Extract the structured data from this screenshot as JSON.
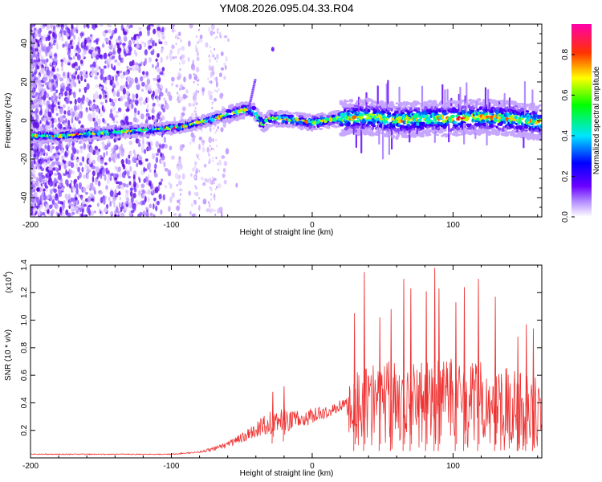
{
  "title": "YM08.2026.095.04.33.R04",
  "chart_data": [
    {
      "type": "heatmap",
      "name": "spectrogram",
      "xlabel": "Height of straight line (km)",
      "ylabel": "Frequency (Hz)",
      "xlim": [
        -200,
        163
      ],
      "ylim": [
        -50,
        50
      ],
      "xticks": [
        -200,
        -100,
        0,
        100
      ],
      "yticks": [
        -40,
        -20,
        0,
        20,
        40
      ],
      "ridge_x": [
        -200,
        -180,
        -160,
        -140,
        -120,
        -100,
        -90,
        -80,
        -70,
        -60,
        -50,
        -45,
        -40,
        -35,
        -30,
        -20,
        -10,
        0,
        10,
        20,
        40,
        60,
        80,
        100,
        120,
        140,
        163
      ],
      "ridge_freq": [
        -8,
        -8,
        -7,
        -6,
        -5,
        -4,
        -3,
        -1,
        1,
        3,
        5,
        6,
        4,
        -2,
        1,
        1,
        0,
        -1,
        0,
        1,
        2,
        0,
        1,
        1,
        2,
        1,
        -1
      ],
      "colorbar": {
        "label": "Normalized spectral amplitude",
        "range": [
          0,
          0.95
        ],
        "ticks": [
          "0.0",
          "0.2",
          "0.4",
          "0.6",
          "0.8"
        ],
        "colors": [
          "#ffffff",
          "#9b30ff",
          "#0000ff",
          "#00ffff",
          "#00ff00",
          "#ffff00",
          "#ff8c00",
          "#ff0000",
          "#ff00ff"
        ]
      }
    },
    {
      "type": "line",
      "name": "snr",
      "xlabel": "Height of straight line (km)",
      "ylabel": "SNR (10 * v/v)",
      "scale_label": "(x10",
      "scale_exp": "4",
      "scale_close": ")",
      "xlim": [
        -200,
        163
      ],
      "ylim": [
        0,
        1.4
      ],
      "xticks": [
        -200,
        -100,
        0,
        100
      ],
      "yticks": [
        "0.2",
        "0.4",
        "0.6",
        "0.8",
        "1.0",
        "1.2",
        "1.4"
      ],
      "color": "#ee3333",
      "envelope_x": [
        -200,
        -150,
        -100,
        -80,
        -70,
        -60,
        -50,
        -40,
        -30,
        -20,
        -10,
        0,
        10,
        20,
        25,
        27,
        30,
        40,
        50,
        60,
        70,
        80,
        90,
        100,
        110,
        120,
        130,
        140,
        150,
        163
      ],
      "envelope_y": [
        0.03,
        0.03,
        0.03,
        0.05,
        0.08,
        0.12,
        0.18,
        0.26,
        0.34,
        0.36,
        0.34,
        0.36,
        0.38,
        0.42,
        0.45,
        0.55,
        0.65,
        0.7,
        0.72,
        0.7,
        0.72,
        0.72,
        0.72,
        0.72,
        0.7,
        0.7,
        0.68,
        0.66,
        0.62,
        0.6
      ],
      "floor_y": [
        0.02,
        0.02,
        0.02,
        0.03,
        0.04,
        0.06,
        0.08,
        0.1,
        0.1,
        0.12,
        0.15,
        0.2,
        0.25,
        0.3,
        0.3,
        0.04,
        0.05,
        0.05,
        0.05,
        0.05,
        0.05,
        0.05,
        0.05,
        0.05,
        0.05,
        0.05,
        0.05,
        0.05,
        0.05,
        0.05
      ],
      "peaks": [
        {
          "x": 30,
          "y": 1.05
        },
        {
          "x": 37,
          "y": 1.35
        },
        {
          "x": 48,
          "y": 1.02
        },
        {
          "x": 56,
          "y": 1.08
        },
        {
          "x": 65,
          "y": 1.3
        },
        {
          "x": 70,
          "y": 1.23
        },
        {
          "x": 81,
          "y": 1.21
        },
        {
          "x": 87,
          "y": 1.38
        },
        {
          "x": 90,
          "y": 1.23
        },
        {
          "x": 102,
          "y": 1.13
        },
        {
          "x": 108,
          "y": 1.24
        },
        {
          "x": 118,
          "y": 1.3
        },
        {
          "x": 130,
          "y": 1.17
        },
        {
          "x": 146,
          "y": 0.88
        },
        {
          "x": 152,
          "y": 0.97
        },
        {
          "x": 157,
          "y": 0.94
        },
        {
          "x": -20,
          "y": 0.52
        },
        {
          "x": -28,
          "y": 0.48
        }
      ]
    }
  ]
}
